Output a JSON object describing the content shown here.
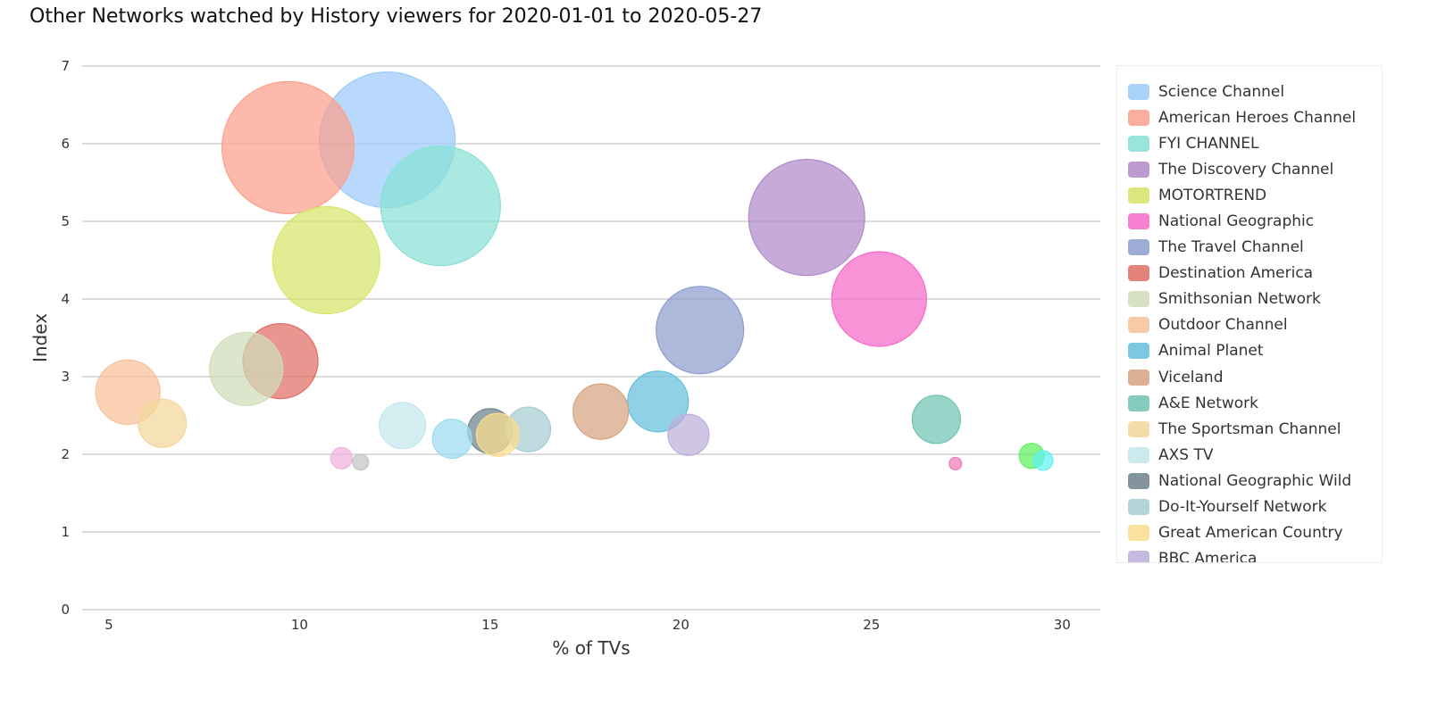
{
  "chart_data": {
    "type": "scatter",
    "title": "Other Networks watched by History viewers for 2020-01-01 to 2020-05-27",
    "xlabel": "% of TVs",
    "ylabel": "Index",
    "xlim": [
      4.3,
      31
    ],
    "ylim": [
      0,
      7
    ],
    "xticks": [
      5,
      10,
      15,
      20,
      25,
      30
    ],
    "yticks": [
      0,
      1,
      2,
      3,
      4,
      5,
      6,
      7
    ],
    "grid": "horizontal",
    "legend_position": "right",
    "size_encoding": "bubble size",
    "series": [
      {
        "name": "Science Channel",
        "x": 12.3,
        "y": 6.05,
        "size": 76,
        "color": "#9ccbfa"
      },
      {
        "name": "American Heroes Channel",
        "x": 9.7,
        "y": 5.95,
        "size": 74,
        "color": "#fca08c"
      },
      {
        "name": "FYI CHANNEL",
        "x": 13.7,
        "y": 5.2,
        "size": 67,
        "color": "#88e0d6"
      },
      {
        "name": "The Discovery Channel",
        "x": 23.3,
        "y": 5.05,
        "size": 65,
        "color": "#b08ac9"
      },
      {
        "name": "MOTORTREND",
        "x": 10.7,
        "y": 4.5,
        "size": 60,
        "color": "#d7e568"
      },
      {
        "name": "National Geographic",
        "x": 25.2,
        "y": 4.0,
        "size": 53,
        "color": "#f66ac9"
      },
      {
        "name": "The Travel Channel",
        "x": 20.5,
        "y": 3.6,
        "size": 49,
        "color": "#8d9ecd"
      },
      {
        "name": "Destination America",
        "x": 9.5,
        "y": 3.2,
        "size": 42,
        "color": "#e06e65"
      },
      {
        "name": "Smithsonian Network",
        "x": 8.6,
        "y": 3.1,
        "size": 41,
        "color": "#cfddb8"
      },
      {
        "name": "Outdoor Channel",
        "x": 5.5,
        "y": 2.8,
        "size": 36,
        "color": "#f9c19a"
      },
      {
        "name": "Animal Planet",
        "x": 19.4,
        "y": 2.68,
        "size": 34,
        "color": "#66bfdc"
      },
      {
        "name": "Viceland",
        "x": 17.9,
        "y": 2.55,
        "size": 31,
        "color": "#d6a381"
      },
      {
        "name": "A&E Network",
        "x": 26.7,
        "y": 2.45,
        "size": 27,
        "color": "#70c3b3"
      },
      {
        "name": "The Sportsman Channel",
        "x": 6.4,
        "y": 2.4,
        "size": 27,
        "color": "#f3d79a"
      },
      {
        "name": "AXS TV",
        "x": 12.7,
        "y": 2.37,
        "size": 26,
        "color": "#c3e7ec"
      },
      {
        "name": "National Geographic Wild",
        "x": 15.0,
        "y": 2.3,
        "size": 25,
        "color": "#6e828d"
      },
      {
        "name": "Do-It-Yourself Network",
        "x": 16.0,
        "y": 2.32,
        "size": 25,
        "color": "#a6cdd4"
      },
      {
        "name": "Great American Country",
        "x": 15.2,
        "y": 2.25,
        "size": 24,
        "color": "#fbdc8e"
      },
      {
        "name": "BBC America",
        "x": 20.2,
        "y": 2.25,
        "size": 23,
        "color": "#bcaedb"
      },
      {
        "name": "",
        "x": 14.0,
        "y": 2.2,
        "size": 22,
        "color": "#9bdbee"
      },
      {
        "name": "",
        "x": 11.1,
        "y": 1.95,
        "size": 12,
        "color": "#f0b2dc"
      },
      {
        "name": "",
        "x": 11.6,
        "y": 1.9,
        "size": 9,
        "color": "#c4c4c4"
      },
      {
        "name": "",
        "x": 27.2,
        "y": 1.88,
        "size": 7,
        "color": "#f07bb5"
      },
      {
        "name": "",
        "x": 29.2,
        "y": 1.98,
        "size": 14,
        "color": "#5ff05f"
      },
      {
        "name": "",
        "x": 29.5,
        "y": 1.92,
        "size": 11,
        "color": "#60f1f1"
      }
    ]
  }
}
